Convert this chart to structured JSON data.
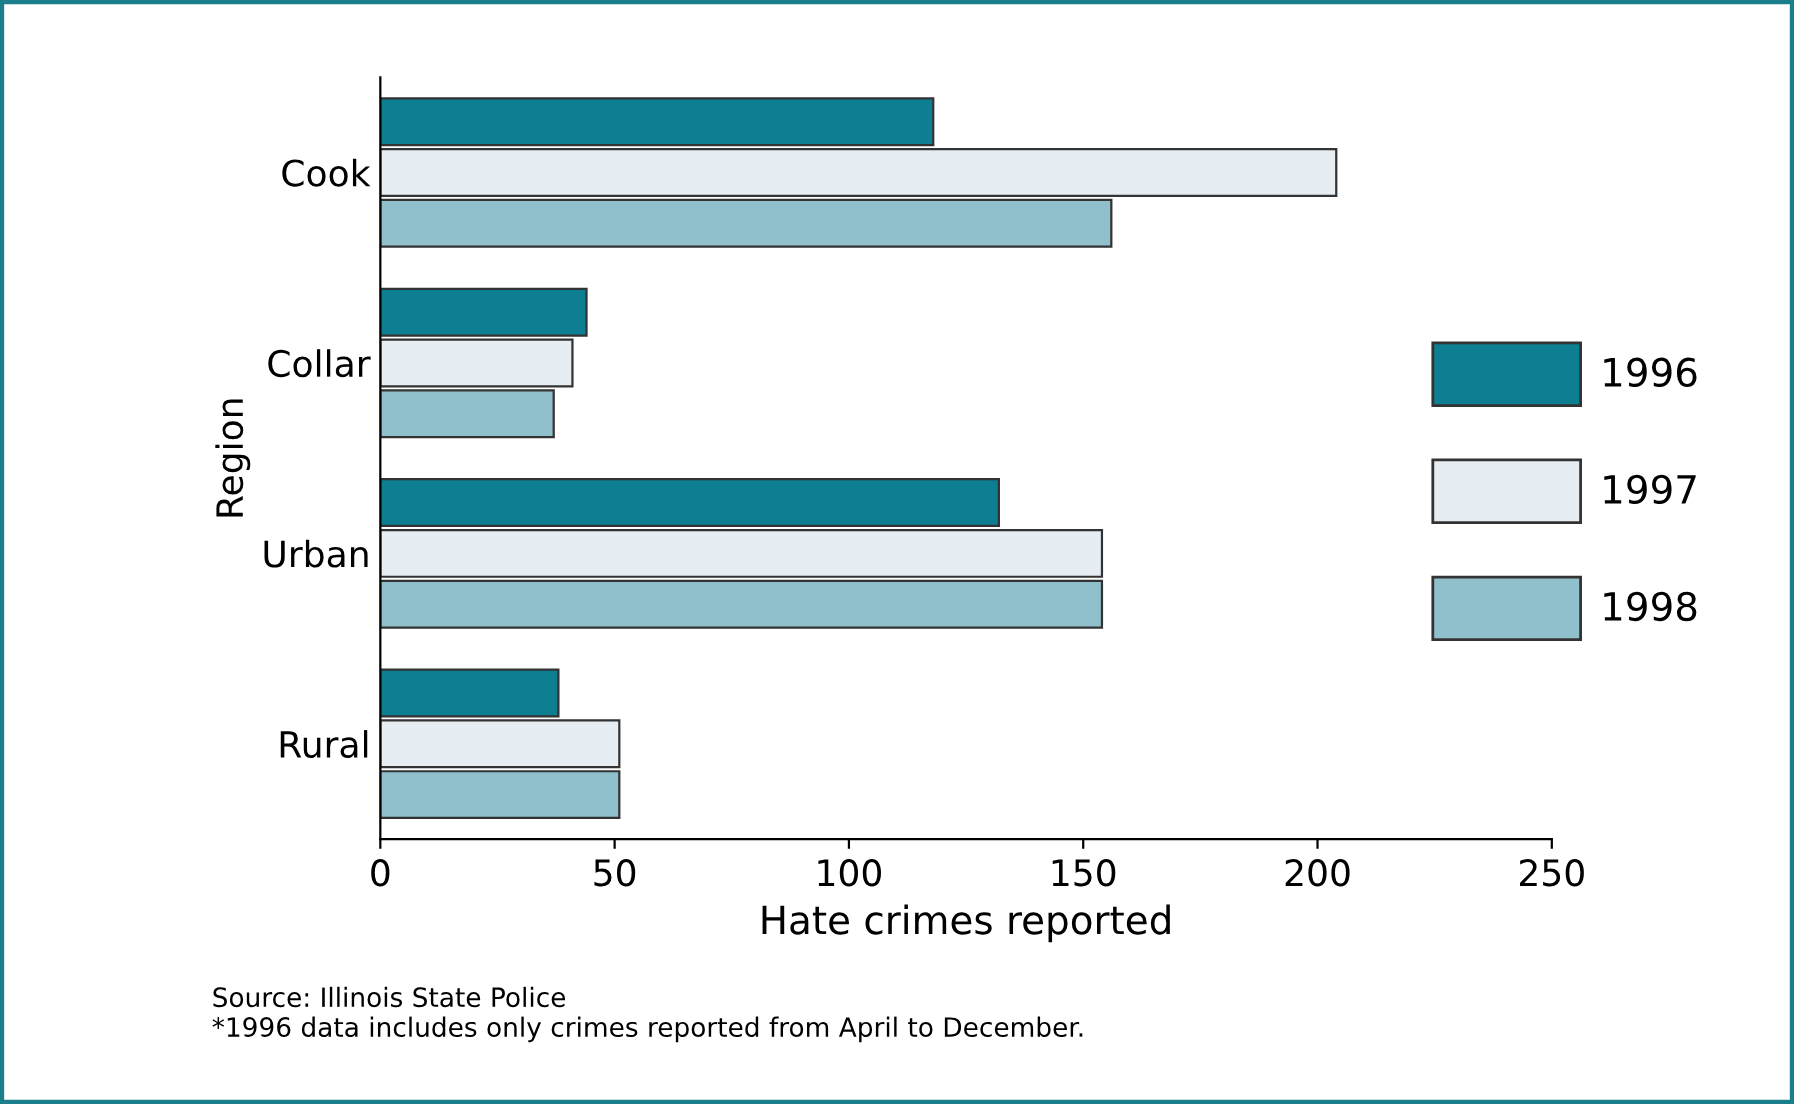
{
  "chart_data": {
    "type": "bar",
    "orientation": "horizontal",
    "xlabel": "Hate crimes reported",
    "ylabel": "Region",
    "categories": [
      "Cook",
      "Collar",
      "Urban",
      "Rural"
    ],
    "series": [
      {
        "name": "1996",
        "color": "#0e7f93",
        "values": [
          118,
          44,
          132,
          38
        ]
      },
      {
        "name": "1997",
        "color": "#e6eef4",
        "values": [
          204,
          41,
          154,
          51
        ]
      },
      {
        "name": "1998",
        "color": "#90c0cc",
        "values": [
          156,
          37,
          154,
          51
        ]
      }
    ],
    "xlim": [
      0,
      250
    ],
    "xticks": [
      0,
      50,
      100,
      150,
      200,
      250
    ],
    "grid": false,
    "legend": "right",
    "annotations": [
      "Source: Illinois State Police",
      "*1996 data includes only crimes reported from April to December."
    ]
  }
}
